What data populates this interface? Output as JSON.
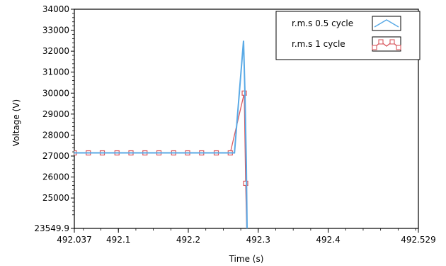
{
  "chart_data": {
    "type": "line",
    "title": "",
    "xlabel": "Time (s)",
    "ylabel": "Voltage (V)",
    "xlim": [
      492.037,
      492.529
    ],
    "ylim": [
      23549.9,
      34000
    ],
    "x_ticks": [
      492.037,
      492.1,
      492.2,
      492.3,
      492.4,
      492.529
    ],
    "x_tick_labels": [
      "492.037",
      "492.1",
      "492.2",
      "492.3",
      "492.4",
      "492.529"
    ],
    "y_ticks": [
      23549.9,
      25000,
      26000,
      27000,
      28000,
      29000,
      30000,
      31000,
      32000,
      33000,
      34000
    ],
    "y_tick_labels": [
      "23549.9",
      "25000",
      "26000",
      "27000",
      "28000",
      "29000",
      "30000",
      "31000",
      "32000",
      "33000",
      "34000"
    ],
    "grid": false,
    "legend_position": "top-right",
    "series": [
      {
        "name": "r.m.s 0.5 cycle",
        "color": "#5aaae6",
        "marker": "none",
        "x": [
          492.037,
          492.05,
          492.1,
          492.15,
          492.2,
          492.25,
          492.266,
          492.279,
          492.281,
          492.283,
          492.284
        ],
        "y": [
          27150,
          27150,
          27150,
          27150,
          27150,
          27150,
          27150,
          32500,
          30000,
          26500,
          23549.9
        ]
      },
      {
        "name": "r.m.s 1 cycle",
        "color": "#d9595f",
        "marker": "square",
        "x": [
          492.037,
          492.057,
          492.077,
          492.098,
          492.118,
          492.138,
          492.158,
          492.179,
          492.199,
          492.219,
          492.24,
          492.26,
          492.28,
          492.282,
          492.2835
        ],
        "y": [
          27150,
          27150,
          27150,
          27150,
          27150,
          27150,
          27150,
          27150,
          27150,
          27150,
          27150,
          27150,
          30000,
          25700,
          23549.9
        ]
      }
    ]
  }
}
